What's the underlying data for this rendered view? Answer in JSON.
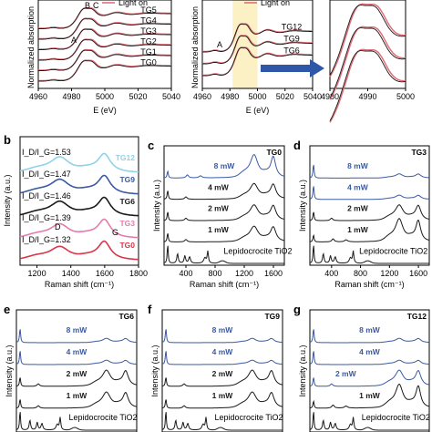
{
  "chart_data": [
    {
      "id": "a1",
      "type": "line",
      "xlabel": "E (eV)",
      "ylabel": "Normalized absorption",
      "xlim": [
        4960,
        5040
      ],
      "x_ticks": [
        "4960",
        "4980",
        "5000",
        "5020",
        "5040"
      ],
      "legend": "Light on",
      "annotations": [
        "A",
        "B",
        "C"
      ],
      "series": [
        {
          "name": "TG5",
          "offset": 5
        },
        {
          "name": "TG4",
          "offset": 4
        },
        {
          "name": "TG3",
          "offset": 3
        },
        {
          "name": "TG2",
          "offset": 2
        },
        {
          "name": "TG1",
          "offset": 1
        },
        {
          "name": "TG0",
          "offset": 0
        }
      ],
      "colors": {
        "dark": "#1a1a1a",
        "light_on": "#e0707a"
      }
    },
    {
      "id": "a2",
      "type": "line",
      "xlabel": "E (eV)",
      "ylabel": "Normalized absorption",
      "xlim": [
        4960,
        5040
      ],
      "x_ticks": [
        "4960",
        "4980",
        "5000",
        "5020",
        "5040"
      ],
      "legend": "Light on",
      "annotations": [
        "A"
      ],
      "highlight_range": [
        4982,
        5000
      ],
      "highlight_color": "#fbf1c4",
      "series": [
        {
          "name": "TG12",
          "offset": 2
        },
        {
          "name": "TG9",
          "offset": 1
        },
        {
          "name": "TG6",
          "offset": 0
        }
      ]
    },
    {
      "id": "a3",
      "type": "line",
      "xlim": [
        4980,
        5000
      ],
      "x_ticks": [
        "4980",
        "4990",
        "5000"
      ],
      "note": "zoom of highlighted region"
    },
    {
      "id": "b",
      "type": "line",
      "panel": "b",
      "xlabel": "Raman shift (cm⁻¹)",
      "ylabel": "Intensity (a.u.)",
      "xlim": [
        1100,
        1800
      ],
      "x_ticks": [
        "1200",
        "1400",
        "1600",
        "1800"
      ],
      "annotations": [
        "D",
        "G"
      ],
      "series": [
        {
          "name": "TG12",
          "ratio": "I_D/I_G=1.53",
          "color": "#8fd3e8"
        },
        {
          "name": "TG9",
          "ratio": "I_D/I_G=1.47",
          "color": "#3b5aa3"
        },
        {
          "name": "TG6",
          "ratio": "I_D/I_G=1.46",
          "color": "#1a1a1a"
        },
        {
          "name": "TG3",
          "ratio": "I_D/I_G=1.39",
          "color": "#e57bab"
        },
        {
          "name": "TG0",
          "ratio": "I_D/I_G=1.32",
          "color": "#d9364a"
        }
      ]
    },
    {
      "id": "c",
      "type": "line",
      "panel": "c",
      "title": "TG0",
      "xlabel": "Raman shift (cm⁻¹)",
      "ylabel": "Intensity (a.u.)",
      "xlim": [
        100,
        1750
      ],
      "x_ticks": [
        "400",
        "800",
        "1200",
        "1600"
      ],
      "series": [
        {
          "name": "8 mW",
          "color": "#3b5aa3"
        },
        {
          "name": "4 mW",
          "color": "#1a1a1a"
        },
        {
          "name": "2 mW",
          "color": "#1a1a1a"
        },
        {
          "name": "1 mW",
          "color": "#1a1a1a"
        },
        {
          "name": "Lepidocrocite TiO2",
          "color": "#1a1a1a"
        }
      ]
    },
    {
      "id": "d",
      "type": "line",
      "panel": "d",
      "title": "TG3",
      "xlabel": "Raman shift (cm⁻¹)",
      "ylabel": "Intensity (a.u.)",
      "xlim": [
        100,
        1750
      ],
      "x_ticks": [
        "400",
        "800",
        "1200",
        "1600"
      ],
      "series": [
        {
          "name": "8 mW",
          "color": "#3b5aa3"
        },
        {
          "name": "4 mW",
          "color": "#3b5aa3"
        },
        {
          "name": "2 mW",
          "color": "#1a1a1a"
        },
        {
          "name": "1 mW",
          "color": "#1a1a1a"
        },
        {
          "name": "Lepidocrocite TiO2",
          "color": "#1a1a1a"
        }
      ]
    },
    {
      "id": "e",
      "type": "line",
      "panel": "e",
      "title": "TG6",
      "ylabel": "Intensity (a.u.)",
      "series": [
        {
          "name": "8 mW",
          "color": "#3b5aa3"
        },
        {
          "name": "4 mW",
          "color": "#3b5aa3"
        },
        {
          "name": "2 mW",
          "color": "#1a1a1a"
        },
        {
          "name": "1 mW",
          "color": "#1a1a1a"
        },
        {
          "name": "Lepidocrocite TiO2",
          "color": "#1a1a1a"
        }
      ]
    },
    {
      "id": "f",
      "type": "line",
      "panel": "f",
      "title": "TG9",
      "ylabel": "Intensity (a.u.)",
      "series": [
        {
          "name": "8 mW",
          "color": "#3b5aa3"
        },
        {
          "name": "4 mW",
          "color": "#3b5aa3"
        },
        {
          "name": "2 mW",
          "color": "#1a1a1a"
        },
        {
          "name": "1 mW",
          "color": "#1a1a1a"
        },
        {
          "name": "Lepidocrocite TiO2",
          "color": "#1a1a1a"
        }
      ]
    },
    {
      "id": "g",
      "type": "line",
      "panel": "g",
      "title": "TG12",
      "ylabel": "Intensity (a.u.)",
      "series": [
        {
          "name": "8 mW",
          "color": "#3b5aa3"
        },
        {
          "name": "4 mW",
          "color": "#3b5aa3"
        },
        {
          "name": "2 mW",
          "color": "#3b5aa3"
        },
        {
          "name": "1 mW",
          "color": "#1a1a1a"
        },
        {
          "name": "Lepidocrocite TiO2",
          "color": "#1a1a1a"
        }
      ]
    }
  ]
}
